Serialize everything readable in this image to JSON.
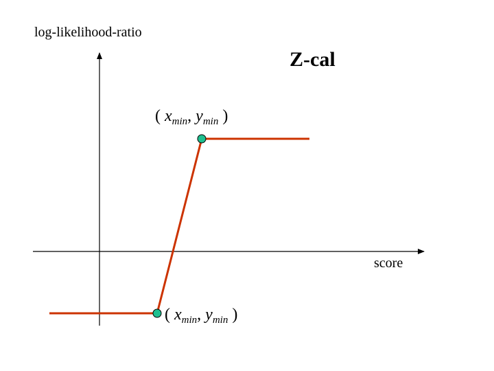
{
  "diagram": {
    "title": "Z-cal",
    "y_axis_label": "log-likelihood-ratio",
    "x_axis_label": "score",
    "upper_point_label": {
      "open": "(",
      "x": "x",
      "x_sub": "min",
      "sep": ",",
      "y": "y",
      "y_sub": "min",
      "close": ")"
    },
    "lower_point_label": {
      "open": "(",
      "x": "x",
      "x_sub": "min",
      "sep": ",",
      "y": "y",
      "y_sub": "min",
      "close": ")"
    },
    "colors": {
      "curve": "#cc3300",
      "point_fill": "#1fbf8f",
      "axis": "#000000"
    }
  }
}
